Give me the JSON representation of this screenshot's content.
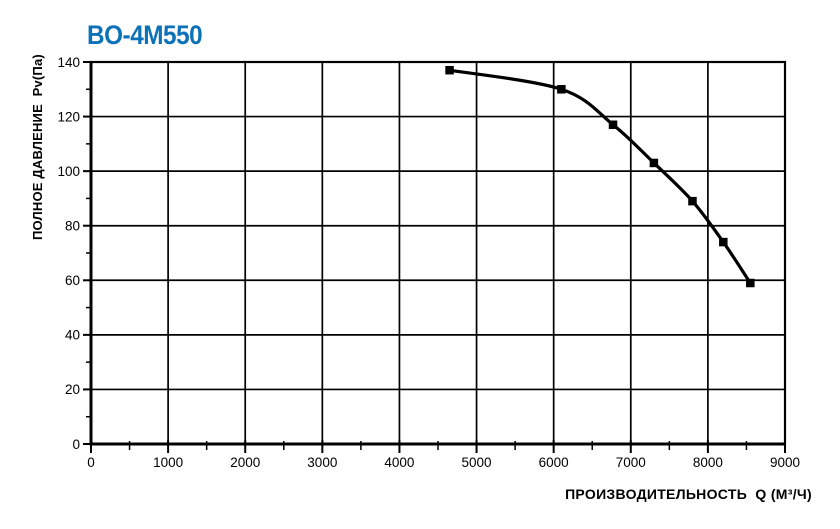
{
  "page": {
    "background": "#ffffff"
  },
  "chart_data": {
    "type": "line",
    "title": "BO-4M550",
    "title_color": "#0c72b8",
    "xlabel": "ПРОИЗВОДИТЕЛЬНОСТЬ  Q (М³/Ч)",
    "ylabel": "ПОЛНОЕ ДАВЛЕНИЕ  Pv(Па)",
    "xlim": [
      0,
      9000
    ],
    "ylim": [
      0,
      140
    ],
    "x_major_step": 1000,
    "x_minor_step": 500,
    "y_major_step": 20,
    "y_minor_step": 10,
    "x_tick_labels": [
      "0",
      "1000",
      "2000",
      "3000",
      "4000",
      "5000",
      "6000",
      "7000",
      "8000",
      "9000"
    ],
    "y_tick_labels": [
      "0",
      "20",
      "40",
      "60",
      "80",
      "100",
      "120",
      "140"
    ],
    "grid": true,
    "legend_position": "none",
    "line_color": "#000000",
    "grid_color": "#000000",
    "marker_shape": "square",
    "series": [
      {
        "name": "BO-4M550",
        "points": [
          [
            4650,
            137
          ],
          [
            6100,
            130
          ],
          [
            6770,
            117
          ],
          [
            7300,
            103
          ],
          [
            7800,
            89
          ],
          [
            8200,
            74
          ],
          [
            8550,
            59
          ]
        ]
      }
    ]
  }
}
